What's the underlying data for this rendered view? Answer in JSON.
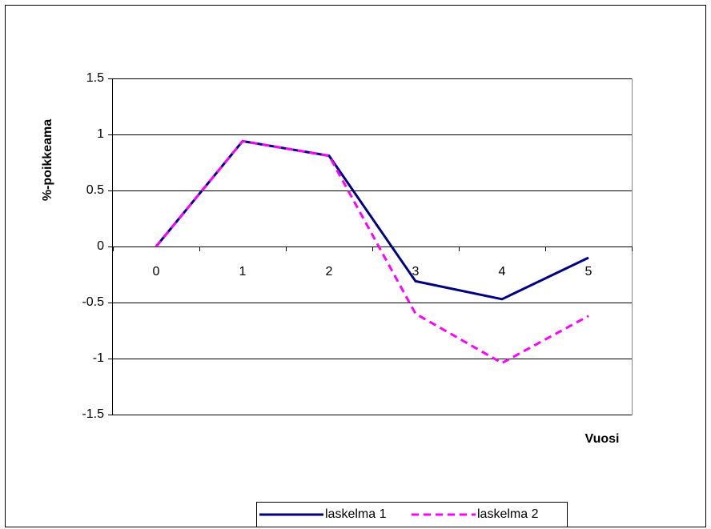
{
  "chart_data": {
    "type": "line",
    "y_label": "%-poikkeama",
    "x_label": "Vuosi",
    "categories": [
      "0",
      "1",
      "2",
      "3",
      "4",
      "5"
    ],
    "series": [
      {
        "name": "laskelma 1",
        "color": "#000080",
        "dash": false,
        "values": [
          0,
          0.94,
          0.81,
          -0.31,
          -0.47,
          -0.1
        ]
      },
      {
        "name": "laskelma 2",
        "color": "#ff00ff",
        "dash": true,
        "values": [
          0,
          0.94,
          0.81,
          -0.6,
          -1.04,
          -0.62
        ]
      }
    ],
    "ylim": [
      -1.5,
      1.5
    ],
    "yticks": [
      1.5,
      1,
      0.5,
      0,
      -0.5,
      -1,
      -1.5
    ],
    "grid": true,
    "legend": "bottom"
  }
}
